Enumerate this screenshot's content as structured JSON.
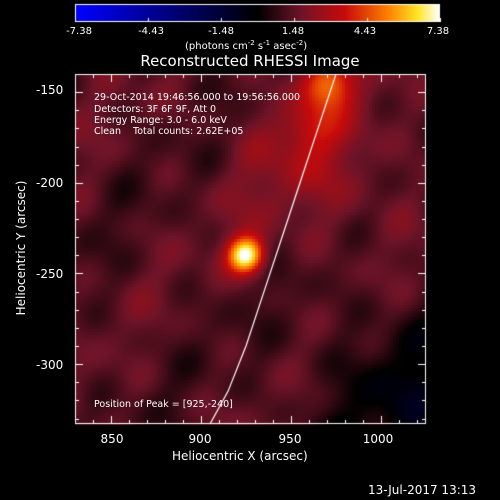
{
  "colorbar": {
    "ticks": [
      "-7.38",
      "-4.43",
      "-1.48",
      "1.48",
      "4.43",
      "7.38"
    ],
    "units_prefix": "(photons cm",
    "units_exp1": "-2",
    "units_mid1": " s",
    "units_exp2": "-1",
    "units_mid2": " asec",
    "units_exp3": "-2",
    "units_suffix": ")"
  },
  "title": "Reconstructed RHESSI Image",
  "annotations": {
    "time_range": "29-Oct-2014 19:46:56.000 to 19:56:56.000",
    "detectors": "Detectors: 3F 6F 9F, Att 0",
    "energy": "Energy Range: 3.0 - 6.0 keV",
    "clean": "Clean    Total counts: 2.62E+05",
    "peak": "Position of Peak = [925,-240]"
  },
  "axes": {
    "xlabel": "Heliocentric X (arcsec)",
    "ylabel": "Heliocentric Y (arcsec)",
    "xticks": [
      "850",
      "900",
      "950",
      "1000"
    ],
    "yticks": [
      "-150",
      "-200",
      "-250",
      "-300"
    ]
  },
  "timestamp": "13-Jul-2017 13:13",
  "chart_data": {
    "type": "heatmap",
    "title": "Reconstructed RHESSI Image",
    "xlabel": "Heliocentric X (arcsec)",
    "ylabel": "Heliocentric Y (arcsec)",
    "xlim": [
      830,
      1025
    ],
    "ylim": [
      -333,
      -140
    ],
    "xticks": [
      850,
      900,
      950,
      1000
    ],
    "yticks": [
      -150,
      -200,
      -250,
      -300
    ],
    "colorbar": {
      "range": [
        -7.38,
        7.38
      ],
      "ticks": [
        -7.38,
        -4.43,
        -1.48,
        1.48,
        4.43,
        7.38
      ],
      "label": "(photons cm-2 s-1 asec-2)",
      "colormap": "blue-black-red-yellow-white"
    },
    "peak": {
      "x": 925,
      "y": -240,
      "value": 7.38
    },
    "secondary_sources": [
      {
        "x": 970,
        "y": -145,
        "value": 4.5
      },
      {
        "x": 960,
        "y": -170,
        "value": 2.5
      }
    ],
    "limb_curve": {
      "x": [
        975,
        965,
        955,
        945,
        935,
        925,
        915,
        905
      ],
      "y": [
        -140,
        -170,
        -200,
        -230,
        -260,
        -290,
        -315,
        -333
      ]
    },
    "background_level": 1.3
  },
  "colors": {
    "background": "#000000",
    "text": "#ffffff",
    "limb_line": "#ffffff"
  }
}
